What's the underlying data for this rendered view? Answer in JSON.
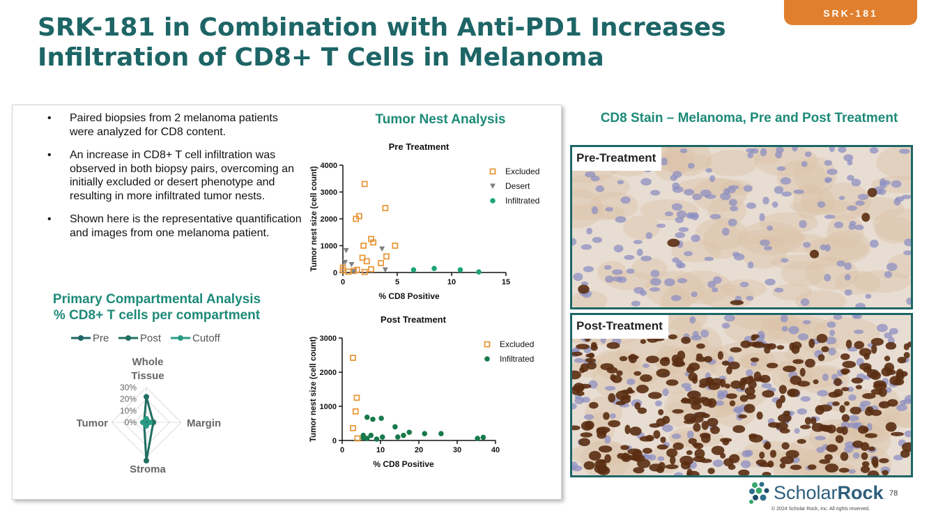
{
  "slide": {
    "title_line1": "SRK-181 in Combination with Anti-PD1 Increases",
    "title_line2": "Infiltration of CD8+ T Cells in Melanoma",
    "tag": "SRK-181",
    "bullets": [
      "Paired biopsies from 2 melanoma patients were analyzed for CD8 content.",
      "An increase in CD8+ T cell infiltration was observed in both biopsy pairs, overcoming an initially excluded or desert phenotype and resulting in more infiltrated tumor nests.",
      "Shown here is the representative quantification and images from one melanoma patient."
    ],
    "compartmental_heading_line1": "Primary Compartmental Analysis",
    "compartmental_heading_line2": "% CD8+ T cells per compartment",
    "tumor_nest_heading": "Tumor Nest Analysis",
    "cd8_heading": "CD8 Stain – Melanoma, Pre and Post Treatment",
    "pre_label": "Pre-Treatment",
    "post_label": "Post-Treatment",
    "logo_scholar": "Scholar",
    "logo_rock": "Rock",
    "logo_tm": ".",
    "page_number": "78",
    "copyright": "© 2024 Scholar Rock, Inc. All rights reserved.",
    "colors": {
      "teal_dark": "#1d6566",
      "teal": "#1d8a78",
      "orange": "#e8983a",
      "gray": "#808080",
      "green_infiltrated": "#1ea37a",
      "green_post": "#177a4c"
    }
  },
  "chart_data": [
    {
      "type": "radar",
      "legend": [
        "Pre",
        "Post",
        "Cutoff"
      ],
      "axes": [
        "Whole Tissue",
        "Margin",
        "Stroma",
        "Tumor"
      ],
      "axis_label_whole_line1": "Whole",
      "axis_label_whole_line2": "Tissue",
      "ticks": [
        "0%",
        "10%",
        "20%",
        "30%"
      ],
      "rmax": 30,
      "series": [
        {
          "name": "Pre",
          "values": [
            2,
            2,
            2,
            2
          ]
        },
        {
          "name": "Post",
          "values": [
            22,
            6,
            33,
            2
          ]
        },
        {
          "name": "Cutoff",
          "values": [
            3,
            3,
            3,
            3
          ]
        }
      ]
    },
    {
      "type": "scatter",
      "title": "Pre Treatment",
      "xlabel": "% CD8 Positive",
      "ylabel": "Tumor nest size (cell count)",
      "xlim": [
        0,
        15
      ],
      "ylim": [
        0,
        4000
      ],
      "xticks": [
        "0",
        "5",
        "10",
        "15"
      ],
      "yticks": [
        "0",
        "1000",
        "2000",
        "3000",
        "4000"
      ],
      "series": [
        {
          "name": "Excluded",
          "marker": "square",
          "points": [
            [
              0,
              80
            ],
            [
              0,
              180
            ],
            [
              0.5,
              30
            ],
            [
              1.2,
              2000
            ],
            [
              1.5,
              2100
            ],
            [
              1.8,
              550
            ],
            [
              1.9,
              1000
            ],
            [
              2.0,
              3300
            ],
            [
              2.2,
              420
            ],
            [
              2.6,
              1250
            ],
            [
              2.8,
              1120
            ],
            [
              3.5,
              350
            ],
            [
              3.9,
              2400
            ],
            [
              4.0,
              600
            ],
            [
              4.8,
              1000
            ],
            [
              1.0,
              60
            ],
            [
              1.3,
              100
            ],
            [
              2.0,
              20
            ],
            [
              2.6,
              120
            ]
          ]
        },
        {
          "name": "Desert",
          "marker": "triangle",
          "points": [
            [
              0.2,
              380
            ],
            [
              0.3,
              820
            ],
            [
              0.8,
              300
            ],
            [
              1.0,
              30
            ],
            [
              3.6,
              880
            ],
            [
              3.9,
              100
            ]
          ]
        },
        {
          "name": "Infiltrated",
          "marker": "circle",
          "points": [
            [
              6.5,
              100
            ],
            [
              8.4,
              150
            ],
            [
              10.8,
              100
            ],
            [
              12.5,
              20
            ]
          ]
        }
      ]
    },
    {
      "type": "scatter",
      "title": "Post Treatment",
      "xlabel": "% CD8 Positive",
      "ylabel": "Tumor nest size (cell count)",
      "xlim": [
        0,
        40
      ],
      "ylim": [
        0,
        3000
      ],
      "xticks": [
        "0",
        "10",
        "20",
        "30",
        "40"
      ],
      "yticks": [
        "0",
        "1000",
        "2000",
        "3000"
      ],
      "series": [
        {
          "name": "Excluded",
          "marker": "square",
          "points": [
            [
              2.8,
              2420
            ],
            [
              3.8,
              1250
            ],
            [
              3.5,
              850
            ],
            [
              2.8,
              360
            ],
            [
              4.0,
              60
            ]
          ]
        },
        {
          "name": "Infiltrated",
          "marker": "circle",
          "points": [
            [
              5.5,
              150
            ],
            [
              6.5,
              680
            ],
            [
              8.0,
              620
            ],
            [
              10.2,
              650
            ],
            [
              5.5,
              80
            ],
            [
              7.5,
              150
            ],
            [
              10.5,
              100
            ],
            [
              13.8,
              400
            ],
            [
              14.5,
              100
            ],
            [
              16.0,
              150
            ],
            [
              17.5,
              240
            ],
            [
              21.5,
              200
            ],
            [
              25.8,
              200
            ],
            [
              35.3,
              60
            ],
            [
              36.8,
              90
            ],
            [
              6.5,
              60
            ],
            [
              9.0,
              40
            ]
          ]
        }
      ]
    }
  ]
}
